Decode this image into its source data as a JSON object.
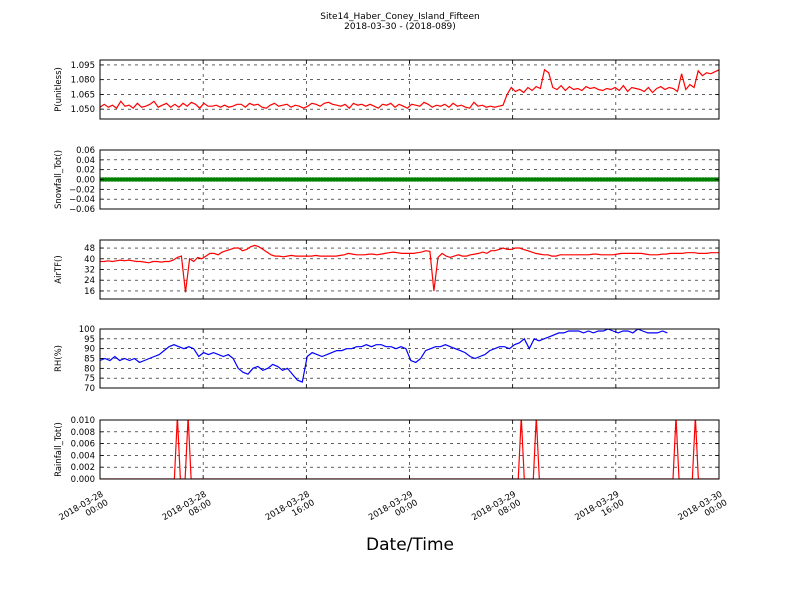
{
  "figure": {
    "title": "Site14_Haber_Coney_Island_Fifteen",
    "subtitle": "2018-03-30 - (2018-089)",
    "xlabel": "Date/Time",
    "x_ticks": [
      {
        "line1": "2018-03-28",
        "line2": "00:00"
      },
      {
        "line1": "2018-03-28",
        "line2": "08:00"
      },
      {
        "line1": "2018-03-28",
        "line2": "16:00"
      },
      {
        "line1": "2018-03-29",
        "line2": "00:00"
      },
      {
        "line1": "2018-03-29",
        "line2": "08:00"
      },
      {
        "line1": "2018-03-29",
        "line2": "16:00"
      },
      {
        "line1": "2018-03-30",
        "line2": "00:00"
      }
    ]
  },
  "chart_data": [
    {
      "type": "line",
      "ylabel": "P(unitless)",
      "color": "#ff0000",
      "ylim": [
        1.04,
        1.1
      ],
      "yticks": [
        1.05,
        1.065,
        1.08,
        1.095
      ],
      "ytick_labels": [
        "1.050",
        "1.065",
        "1.080",
        "1.095"
      ],
      "grid": true,
      "series": [
        {
          "x_range": [
            "2018-03-28 00:00",
            "2018-03-30 00:00"
          ],
          "values": [
            1.052,
            1.055,
            1.052,
            1.054,
            1.051,
            1.058,
            1.053,
            1.054,
            1.051,
            1.056,
            1.052,
            1.053,
            1.055,
            1.058,
            1.052,
            1.054,
            1.056,
            1.052,
            1.055,
            1.052,
            1.056,
            1.053,
            1.057,
            1.055,
            1.051,
            1.056,
            1.053,
            1.053,
            1.054,
            1.052,
            1.054,
            1.052,
            1.053,
            1.055,
            1.055,
            1.052,
            1.056,
            1.054,
            1.055,
            1.052,
            1.051,
            1.054,
            1.056,
            1.053,
            1.054,
            1.055,
            1.052,
            1.054,
            1.053,
            1.051,
            1.053,
            1.056,
            1.055,
            1.053,
            1.056,
            1.057,
            1.055,
            1.054,
            1.053,
            1.055,
            1.051,
            1.056,
            1.054,
            1.055,
            1.053,
            1.055,
            1.053,
            1.051,
            1.055,
            1.054,
            1.056,
            1.052,
            1.055,
            1.053,
            1.051,
            1.055,
            1.054,
            1.053,
            1.057,
            1.055,
            1.052,
            1.054,
            1.053,
            1.055,
            1.052,
            1.056,
            1.053,
            1.054,
            1.052,
            1.051,
            1.057,
            1.053,
            1.054,
            1.052,
            1.053,
            1.052,
            1.053,
            1.054,
            1.065,
            1.072,
            1.068,
            1.07,
            1.067,
            1.072,
            1.069,
            1.073,
            1.071,
            1.09,
            1.087,
            1.072,
            1.07,
            1.074,
            1.069,
            1.073,
            1.07,
            1.071,
            1.069,
            1.073,
            1.071,
            1.072,
            1.07,
            1.069,
            1.071,
            1.07,
            1.072,
            1.069,
            1.074,
            1.068,
            1.072,
            1.071,
            1.07,
            1.068,
            1.072,
            1.067,
            1.071,
            1.073,
            1.07,
            1.072,
            1.071,
            1.068,
            1.086,
            1.07,
            1.075,
            1.072,
            1.089,
            1.084,
            1.087,
            1.086,
            1.088,
            1.09
          ]
        }
      ]
    },
    {
      "type": "line",
      "ylabel": "Snowfall_Tot()",
      "color": "#008000",
      "ylim": [
        -0.06,
        0.06
      ],
      "yticks": [
        -0.06,
        -0.04,
        -0.02,
        0,
        0.02,
        0.04,
        0.06
      ],
      "ytick_labels": [
        "−0.06",
        "−0.04",
        "−0.02",
        "0.00",
        "0.02",
        "0.04",
        "0.06"
      ],
      "grid": true,
      "series": [
        {
          "x_range": [
            "2018-03-28 00:00",
            "2018-03-30 00:00"
          ],
          "values": [
            0,
            0
          ]
        }
      ]
    },
    {
      "type": "line",
      "ylabel": "AirTF()",
      "color": "#ff0000",
      "ylim": [
        10,
        54
      ],
      "yticks": [
        16,
        24,
        32,
        40,
        48
      ],
      "ytick_labels": [
        "16",
        "24",
        "32",
        "40",
        "48"
      ],
      "grid": true,
      "series": [
        {
          "x_range": [
            "2018-03-28 00:00",
            "2018-03-30 00:00"
          ],
          "values": [
            38,
            38,
            38.5,
            38,
            38.5,
            39,
            38.5,
            39,
            38.5,
            38,
            38,
            37.5,
            37,
            38,
            38,
            37.5,
            38,
            38,
            39,
            41,
            42,
            15,
            40,
            38,
            41,
            40,
            42,
            44,
            44,
            43,
            45,
            46,
            47,
            48,
            48,
            46,
            47,
            49,
            50,
            49,
            47,
            45,
            43,
            42,
            42,
            41.5,
            42,
            42.5,
            42,
            42,
            42,
            42,
            42,
            42.5,
            42,
            42,
            42,
            42,
            42,
            42.5,
            43,
            44,
            43.5,
            43,
            43,
            43,
            43.5,
            43.5,
            43,
            43.5,
            44,
            44.5,
            45,
            44.5,
            44,
            44,
            44,
            44,
            44.5,
            45,
            46,
            45.5,
            16,
            41,
            44,
            42,
            41,
            42,
            43,
            42,
            42,
            43,
            43.5,
            44,
            45,
            44,
            46,
            46,
            47,
            48,
            47,
            47,
            48,
            48,
            47,
            46,
            45,
            44,
            43.5,
            43,
            43,
            42,
            42,
            43,
            43,
            43,
            43,
            43,
            43,
            43,
            43,
            43.5,
            43.5,
            43,
            43,
            43,
            43,
            43.5,
            44,
            44,
            44,
            44,
            44,
            44,
            43.5,
            43,
            43,
            43,
            43.5,
            43.5,
            44,
            44,
            44,
            44,
            44.5,
            44.5,
            44.5,
            44,
            44,
            44,
            44.5,
            44.5,
            44.5
          ]
        }
      ]
    },
    {
      "type": "line",
      "ylabel": "RH(%)",
      "color": "#0000ff",
      "ylim": [
        70,
        100
      ],
      "yticks": [
        70,
        75,
        80,
        85,
        90,
        95,
        100
      ],
      "ytick_labels": [
        "70",
        "75",
        "80",
        "85",
        "90",
        "95",
        "100"
      ],
      "grid": true,
      "series": [
        {
          "x_range": [
            "2018-03-28 00:00",
            "2018-03-29 20:00"
          ],
          "values": [
            84,
            85,
            84,
            86,
            84,
            85,
            84,
            85,
            83,
            84,
            85,
            86,
            87,
            89,
            91,
            92,
            91,
            90,
            91,
            90,
            86,
            88,
            87,
            88,
            87,
            86,
            87,
            85,
            80,
            78,
            77,
            80,
            81,
            79,
            80,
            82,
            81,
            79,
            80,
            77,
            74,
            73,
            86,
            88,
            87,
            86,
            87,
            88,
            89,
            89,
            90,
            90,
            91,
            91,
            92,
            91,
            92,
            92,
            91,
            91,
            90,
            91,
            90,
            84,
            83,
            85,
            89,
            90,
            91,
            91,
            92,
            91,
            90,
            89,
            88,
            86,
            85,
            86,
            87,
            89,
            90,
            91,
            91,
            90,
            92,
            93,
            95,
            90,
            95,
            94,
            95,
            96,
            97,
            98,
            98,
            99,
            99,
            99,
            98,
            99,
            98,
            99,
            99,
            100,
            99,
            98,
            99,
            99,
            98,
            100,
            99,
            98,
            98,
            98,
            99,
            98
          ]
        }
      ]
    },
    {
      "type": "line",
      "ylabel": "Rainfall_Tot()",
      "color": "#ff0000",
      "ylim": [
        0,
        0.01
      ],
      "yticks": [
        0,
        0.002,
        0.004,
        0.006,
        0.008,
        0.01
      ],
      "ytick_labels": [
        "0.000",
        "0.002",
        "0.004",
        "0.006",
        "0.008",
        "0.010"
      ],
      "grid": true,
      "series": [
        {
          "x_range": [
            "2018-03-28 00:00",
            "2018-03-30 00:00"
          ],
          "values": [
            0,
            0,
            0,
            0,
            0,
            0,
            0,
            0,
            0,
            0,
            0,
            0,
            0,
            0,
            0,
            0,
            0,
            0,
            0,
            0,
            0,
            0,
            0,
            0,
            0,
            0,
            0,
            0,
            0,
            0,
            0,
            0,
            0,
            0,
            0,
            0,
            0,
            0,
            0,
            0,
            0,
            0,
            0,
            0,
            0,
            0,
            0,
            0,
            0,
            0,
            0,
            0,
            0,
            0,
            0,
            0,
            0,
            0,
            0,
            0,
            0,
            0,
            0,
            0,
            0,
            0,
            0,
            0,
            0,
            0,
            0,
            0,
            0,
            0,
            0,
            0,
            0,
            0,
            0,
            0,
            0,
            0,
            0,
            0,
            0,
            0,
            0,
            0,
            0,
            0,
            0,
            0,
            0,
            0,
            0,
            0,
            0,
            0,
            0,
            0,
            0,
            0,
            0,
            0,
            0,
            0,
            0,
            0,
            0,
            0,
            0,
            0,
            0,
            0,
            0,
            0,
            0,
            0,
            0,
            0,
            0,
            0,
            0,
            0,
            0,
            0,
            0,
            0,
            0,
            0,
            0,
            0,
            0,
            0,
            0,
            0,
            0,
            0,
            0,
            0,
            0,
            0,
            0,
            0,
            0,
            0,
            0,
            0,
            0,
            0,
            0,
            0,
            0,
            0,
            0,
            0,
            0,
            0,
            0,
            0,
            0,
            0,
            0,
            0,
            0,
            0,
            0,
            0,
            0,
            0,
            0,
            0,
            0,
            0,
            0,
            0,
            0,
            0,
            0,
            0,
            0,
            0,
            0,
            0,
            0,
            0,
            0,
            0,
            0,
            0,
            0,
            0,
            0,
            0,
            0,
            0,
            0,
            0
          ]
        }
      ],
      "peaks": [
        {
          "x": "2018-03-28 06:00",
          "value": 0.01
        },
        {
          "x": "2018-03-28 06:50",
          "value": 0.01
        },
        {
          "x": "2018-03-29 08:40",
          "value": 0.01
        },
        {
          "x": "2018-03-29 09:50",
          "value": 0.01
        },
        {
          "x": "2018-03-29 20:40",
          "value": 0.01
        },
        {
          "x": "2018-03-29 22:10",
          "value": 0.01
        }
      ]
    }
  ]
}
